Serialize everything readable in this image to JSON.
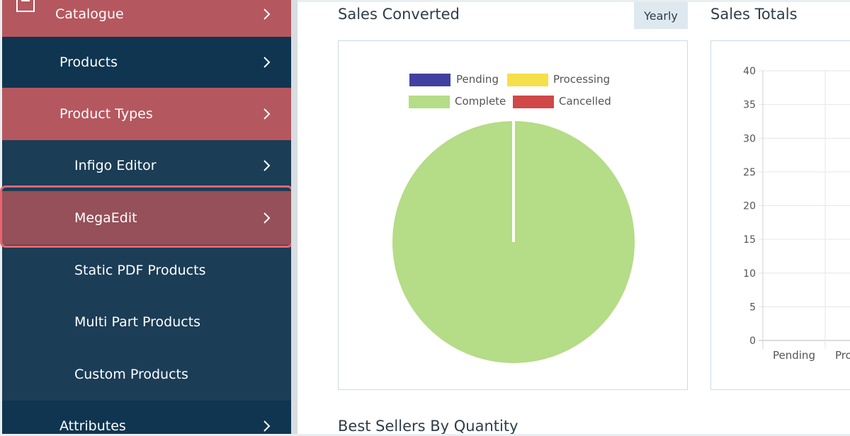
{
  "sidebar": {
    "items": [
      {
        "label": "Catalogue",
        "icon": "box-icon",
        "level": 0
      },
      {
        "label": "Products",
        "level": 1
      },
      {
        "label": "Product Types",
        "level": 1
      },
      {
        "label": "Infigo Editor",
        "level": 2
      },
      {
        "label": "MegaEdit",
        "level": 2,
        "selected": true
      },
      {
        "label": "Static PDF Products",
        "level": 2
      },
      {
        "label": "Multi Part Products",
        "level": 2
      },
      {
        "label": "Custom Products",
        "level": 2
      },
      {
        "label": "Attributes",
        "level": 1
      }
    ]
  },
  "sales_converted": {
    "title": "Sales Converted",
    "period_button": "Yearly",
    "legend": [
      {
        "label": "Pending",
        "color": "#4040a0"
      },
      {
        "label": "Processing",
        "color": "#f5e04a"
      },
      {
        "label": "Complete",
        "color": "#b5dc86"
      },
      {
        "label": "Cancelled",
        "color": "#d04848"
      }
    ]
  },
  "sales_totals": {
    "title": "Sales Totals"
  },
  "best_sellers": {
    "title": "Best Sellers By Quantity"
  },
  "chart_data": [
    {
      "type": "pie",
      "title": "",
      "categories": [
        "Pending",
        "Processing",
        "Complete",
        "Cancelled"
      ],
      "values": [
        0,
        0,
        100,
        0
      ],
      "colors": [
        "#4040a0",
        "#f5e04a",
        "#b5dc86",
        "#d04848"
      ],
      "legend": "top"
    },
    {
      "type": "bar",
      "title": "",
      "categories": [
        "Pending",
        "Proc"
      ],
      "values": [
        0,
        0
      ],
      "ylim": [
        0,
        40
      ],
      "yticks": [
        "40",
        "35",
        "30",
        "25",
        "20",
        "15",
        "10",
        "5",
        "0"
      ],
      "grid": true
    }
  ]
}
